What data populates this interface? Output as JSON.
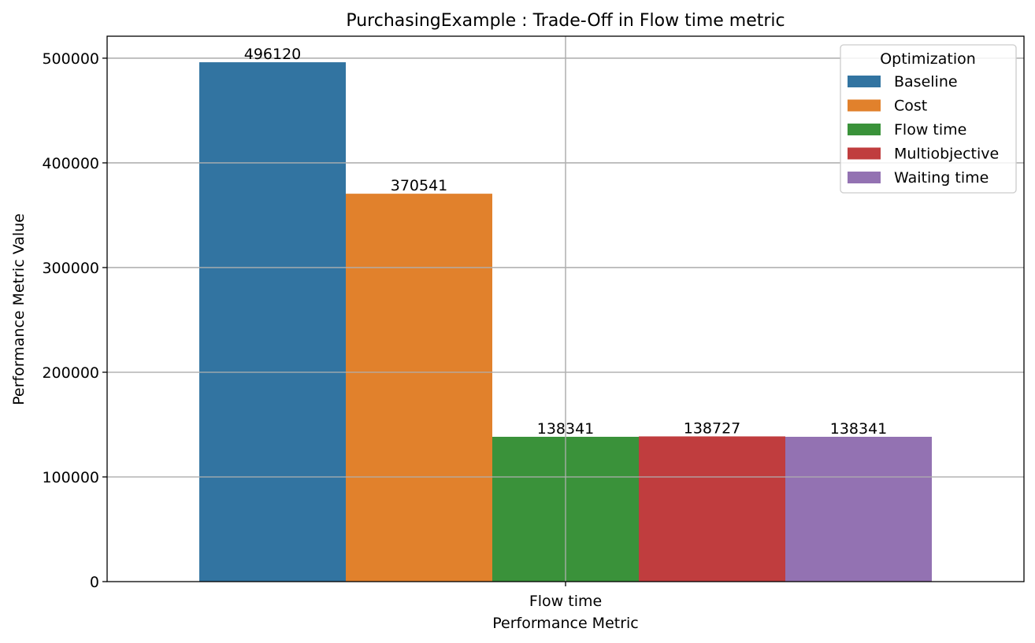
{
  "chart_data": {
    "type": "bar",
    "title": "PurchasingExample : Trade-Off in Flow time metric",
    "xlabel": "Performance Metric",
    "ylabel": "Performance Metric Value",
    "categories": [
      "Flow time"
    ],
    "ylim": [
      0,
      521000
    ],
    "yticks": [
      0,
      100000,
      200000,
      300000,
      400000,
      500000
    ],
    "grid": true,
    "legend": {
      "title": "Optimization",
      "placement": "top-right"
    },
    "series": [
      {
        "name": "Baseline",
        "values": [
          496120
        ],
        "label": "496120",
        "color": "#3274a1"
      },
      {
        "name": "Cost",
        "values": [
          370541
        ],
        "label": "370541",
        "color": "#e1812c"
      },
      {
        "name": "Flow time",
        "values": [
          138341
        ],
        "label": "138341",
        "color": "#3a923a"
      },
      {
        "name": "Multiobjective",
        "values": [
          138727
        ],
        "label": "138727",
        "color": "#c03d3e"
      },
      {
        "name": "Waiting time",
        "values": [
          138341
        ],
        "label": "138341",
        "color": "#9372b2"
      }
    ]
  }
}
